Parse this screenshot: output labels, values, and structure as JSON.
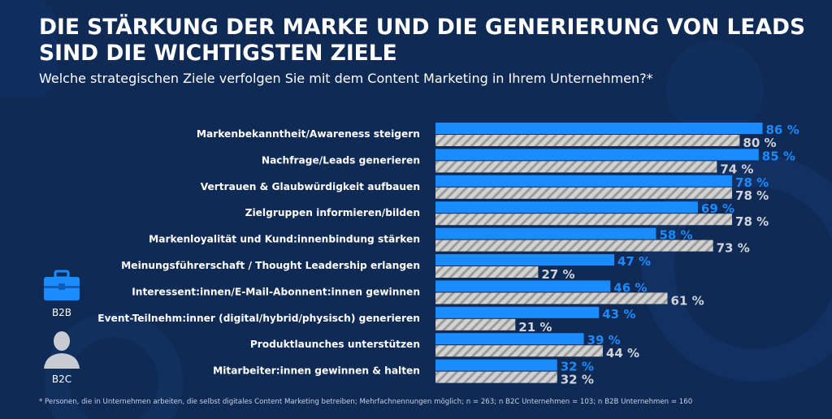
{
  "title": "DIE STÄRKUNG DER MARKE UND DIE GENERIERUNG VON LEADS SIND DIE WICHTIGSTEN ZIELE",
  "subtitle": "Welche strategischen Ziele verfolgen Sie mit dem Content Marketing in Ihrem Unternehmen?*",
  "footnote": "* Personen, die in Unternehmen arbeiten, die selbst digitales Content Marketing betreiben; Mehrfachnennungen möglich; n = 263; n B2C Unternehmen = 103; n B2B Unternehmen = 160",
  "legend": {
    "b2b": {
      "label": "B2B",
      "icon": "briefcase-icon"
    },
    "b2c": {
      "label": "B2C",
      "icon": "person-icon"
    }
  },
  "colors": {
    "background": "#0f2a55",
    "b2b": "#1a8cff",
    "b2c": "#cfcfcf",
    "b2c_stripe": "#9a9a9a"
  },
  "chart_data": {
    "type": "bar",
    "orientation": "horizontal",
    "value_suffix": " %",
    "xlim": [
      0,
      100
    ],
    "grid": false,
    "categories": [
      "Markenbekanntheit/Awareness steigern",
      "Nachfrage/Leads generieren",
      "Vertrauen & Glaubwürdigkeit aufbauen",
      "Zielgruppen informieren/bilden",
      "Markenloyalität und Kund:innenbindung stärken",
      "Meinungsführerschaft / Thought Leadership erlangen",
      "Interessent:innen/E-Mail-Abonnent:innen gewinnen",
      "Event-Teilnehm:inner (digital/hybrid/physisch) generieren",
      "Produktlaunches unterstützen",
      "Mitarbeiter:innen gewinnen & halten"
    ],
    "series": [
      {
        "name": "B2B",
        "values": [
          86,
          85,
          78,
          69,
          58,
          47,
          46,
          43,
          39,
          32
        ]
      },
      {
        "name": "B2C",
        "values": [
          80,
          74,
          78,
          78,
          73,
          27,
          61,
          21,
          44,
          32
        ]
      }
    ]
  }
}
